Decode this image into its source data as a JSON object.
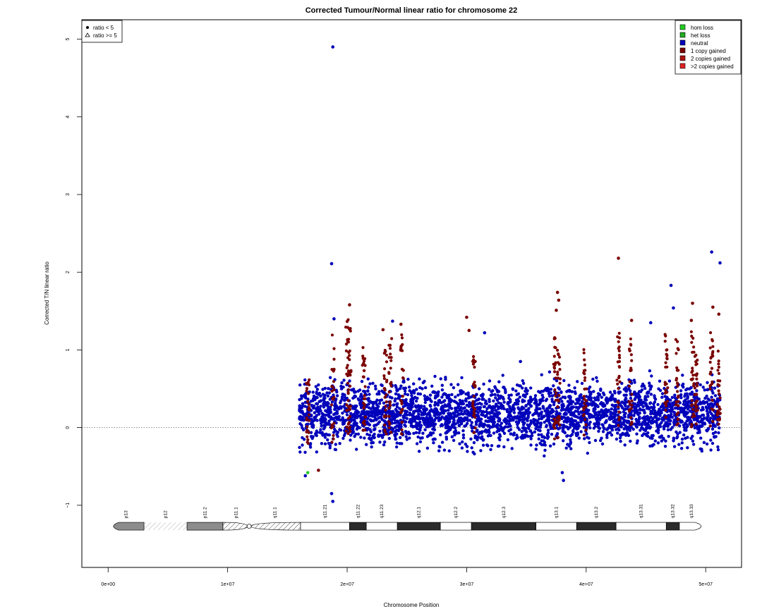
{
  "chart_data": {
    "type": "scatter",
    "title": "Corrected Tumour/Normal linear ratio for chromosome  22",
    "xlabel": "Chromosome Position",
    "ylabel": "Corrected T/N linear ratio",
    "xlim": [
      -2200000,
      53000000
    ],
    "ylim": [
      -1.8,
      5.25
    ],
    "x_ticks": [
      0,
      10000000,
      20000000,
      30000000,
      40000000,
      50000000
    ],
    "x_tick_labels": [
      "0e+00",
      "1e+07",
      "2e+07",
      "3e+07",
      "4e+07",
      "5e+07"
    ],
    "y_ticks": [
      -1,
      0,
      1,
      2,
      3,
      4,
      5
    ],
    "y_tick_labels": [
      "−1",
      "0",
      "1",
      "2",
      "3",
      "4",
      "5"
    ],
    "reference_line_y": 0,
    "grid": false,
    "shape_legend": {
      "position": "top-left",
      "entries": [
        {
          "symbol": "filled-circle",
          "label": "ratio < 5"
        },
        {
          "symbol": "open-triangle",
          "label": "ratio >= 5"
        }
      ]
    },
    "legend": {
      "position": "top-right",
      "entries": [
        {
          "label": "hom loss",
          "color": "#22cc22"
        },
        {
          "label": "het loss",
          "color": "#22aa22"
        },
        {
          "label": "neutral",
          "color": "#0000bb"
        },
        {
          "label": "1 copy gained",
          "color": "#7a0000"
        },
        {
          "label": "2 copies gained",
          "color": "#aa1111"
        },
        {
          "label": ">2 copies gained",
          "color": "#dd2222"
        }
      ]
    },
    "neutral_band": {
      "x_start": 16000000,
      "x_end": 51200000,
      "y_min": -0.4,
      "y_max": 0.75,
      "color": "#0000bb"
    },
    "outlier_points": [
      {
        "x": 18800000,
        "y": 4.9,
        "state": "neutral"
      },
      {
        "x": 18700000,
        "y": 2.11,
        "state": "neutral"
      },
      {
        "x": 50500000,
        "y": 2.26,
        "state": "neutral"
      },
      {
        "x": 51200000,
        "y": 2.12,
        "state": "neutral"
      },
      {
        "x": 42700000,
        "y": 2.18,
        "state": "1 copy gained"
      },
      {
        "x": 47100000,
        "y": 1.83,
        "state": "neutral"
      },
      {
        "x": 37600000,
        "y": 1.74,
        "state": "1 copy gained"
      },
      {
        "x": 37700000,
        "y": 1.64,
        "state": "1 copy gained"
      },
      {
        "x": 20200000,
        "y": 1.58,
        "state": "1 copy gained"
      },
      {
        "x": 48900000,
        "y": 1.6,
        "state": "1 copy gained"
      },
      {
        "x": 50600000,
        "y": 1.55,
        "state": "1 copy gained"
      },
      {
        "x": 47300000,
        "y": 1.54,
        "state": "neutral"
      },
      {
        "x": 37500000,
        "y": 1.51,
        "state": "1 copy gained"
      },
      {
        "x": 51100000,
        "y": 1.46,
        "state": "1 copy gained"
      },
      {
        "x": 30000000,
        "y": 1.42,
        "state": "1 copy gained"
      },
      {
        "x": 18900000,
        "y": 1.4,
        "state": "neutral"
      },
      {
        "x": 23800000,
        "y": 1.37,
        "state": "neutral"
      },
      {
        "x": 24500000,
        "y": 1.33,
        "state": "1 copy gained"
      },
      {
        "x": 45400000,
        "y": 1.35,
        "state": "neutral"
      },
      {
        "x": 48800000,
        "y": 1.38,
        "state": "1 copy gained"
      },
      {
        "x": 43800000,
        "y": 1.38,
        "state": "1 copy gained"
      },
      {
        "x": 30200000,
        "y": 1.25,
        "state": "1 copy gained"
      },
      {
        "x": 31500000,
        "y": 1.22,
        "state": "neutral"
      },
      {
        "x": 23000000,
        "y": 1.26,
        "state": "1 copy gained"
      },
      {
        "x": 34500000,
        "y": 0.85,
        "state": "neutral"
      },
      {
        "x": 16500000,
        "y": -0.62,
        "state": "neutral"
      },
      {
        "x": 16700000,
        "y": -0.58,
        "state": "hom loss"
      },
      {
        "x": 18800000,
        "y": -0.95,
        "state": "neutral"
      },
      {
        "x": 18700000,
        "y": -0.85,
        "state": "neutral"
      },
      {
        "x": 17600000,
        "y": -0.55,
        "state": "1 copy gained"
      },
      {
        "x": 38100000,
        "y": -0.68,
        "state": "neutral"
      },
      {
        "x": 38000000,
        "y": -0.58,
        "state": "neutral"
      }
    ],
    "gain_segments": [
      {
        "x": 16700000,
        "y_min": -0.3,
        "y_max": 0.72
      },
      {
        "x": 18800000,
        "y_min": -0.2,
        "y_max": 1.25
      },
      {
        "x": 20000000,
        "y_min": -0.1,
        "y_max": 1.42
      },
      {
        "x": 20200000,
        "y_min": -0.1,
        "y_max": 1.3
      },
      {
        "x": 21400000,
        "y_min": -0.1,
        "y_max": 1.15
      },
      {
        "x": 23200000,
        "y_min": -0.1,
        "y_max": 1.0
      },
      {
        "x": 23600000,
        "y_min": -0.1,
        "y_max": 1.15
      },
      {
        "x": 24600000,
        "y_min": -0.1,
        "y_max": 1.2
      },
      {
        "x": 30600000,
        "y_min": -0.1,
        "y_max": 1.0
      },
      {
        "x": 37400000,
        "y_min": -0.15,
        "y_max": 1.25
      },
      {
        "x": 37700000,
        "y_min": -0.15,
        "y_max": 1.0
      },
      {
        "x": 39900000,
        "y_min": -0.1,
        "y_max": 1.15
      },
      {
        "x": 42700000,
        "y_min": 0.0,
        "y_max": 1.25
      },
      {
        "x": 43700000,
        "y_min": 0.0,
        "y_max": 1.2
      },
      {
        "x": 46700000,
        "y_min": 0.0,
        "y_max": 1.2
      },
      {
        "x": 47600000,
        "y_min": 0.0,
        "y_max": 1.15
      },
      {
        "x": 48900000,
        "y_min": 0.0,
        "y_max": 1.3
      },
      {
        "x": 49200000,
        "y_min": 0.0,
        "y_max": 1.1
      },
      {
        "x": 50500000,
        "y_min": 0.0,
        "y_max": 1.25
      },
      {
        "x": 51100000,
        "y_min": 0.0,
        "y_max": 1.0
      }
    ],
    "ideogram": {
      "y": -1.27,
      "bands": [
        {
          "name": "p13",
          "start": 0,
          "end": 3000000,
          "stain": "gvar"
        },
        {
          "name": "p12",
          "start": 3000000,
          "end": 6600000,
          "stain": "stalk"
        },
        {
          "name": "p11.2",
          "start": 6600000,
          "end": 9600000,
          "stain": "gvar"
        },
        {
          "name": "p11.1",
          "start": 9600000,
          "end": 11800000,
          "stain": "acen"
        },
        {
          "name": "q11.1",
          "start": 11800000,
          "end": 16100000,
          "stain": "acen"
        },
        {
          "name": "q11.21",
          "start": 16100000,
          "end": 20200000,
          "stain": "gneg"
        },
        {
          "name": "q11.22",
          "start": 20200000,
          "end": 21600000,
          "stain": "gpos"
        },
        {
          "name": "q11.23",
          "start": 21600000,
          "end": 24200000,
          "stain": "gneg"
        },
        {
          "name": "q12.1",
          "start": 24200000,
          "end": 27800000,
          "stain": "gpos"
        },
        {
          "name": "q12.2",
          "start": 27800000,
          "end": 30400000,
          "stain": "gneg"
        },
        {
          "name": "q12.3",
          "start": 30400000,
          "end": 35800000,
          "stain": "gpos"
        },
        {
          "name": "q13.1",
          "start": 35800000,
          "end": 39200000,
          "stain": "gneg"
        },
        {
          "name": "q13.2",
          "start": 39200000,
          "end": 42500000,
          "stain": "gpos"
        },
        {
          "name": "q13.31",
          "start": 42500000,
          "end": 46700000,
          "stain": "gneg"
        },
        {
          "name": "q13.32",
          "start": 46700000,
          "end": 47800000,
          "stain": "gpos"
        },
        {
          "name": "q13.33",
          "start": 47800000,
          "end": 49800000,
          "stain": "gneg"
        }
      ]
    }
  }
}
